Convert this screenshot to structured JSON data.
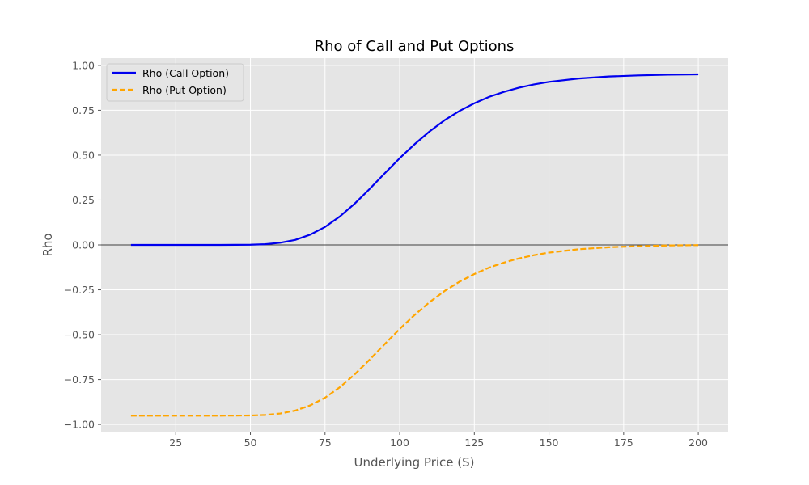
{
  "chart_data": {
    "type": "line",
    "title": "Rho of Call and Put Options",
    "xlabel": "Underlying Price (S)",
    "ylabel": "Rho",
    "xlim": [
      0,
      210
    ],
    "ylim": [
      -1.04,
      1.04
    ],
    "xticks": [
      25,
      50,
      75,
      100,
      125,
      150,
      175,
      200
    ],
    "yticks": [
      -1.0,
      -0.75,
      -0.5,
      -0.25,
      0.0,
      0.25,
      0.5,
      0.75,
      1.0
    ],
    "xtick_labels": [
      "25",
      "50",
      "75",
      "100",
      "125",
      "150",
      "175",
      "200"
    ],
    "ytick_labels": [
      "−1.00",
      "−0.75",
      "−0.50",
      "−0.25",
      "0.00",
      "0.25",
      "0.50",
      "0.75",
      "1.00"
    ],
    "grid": true,
    "legend": "top-left",
    "zero_line": true,
    "colors": {
      "call": "#0000ee",
      "put": "#ffa500",
      "background": "#e5e5e5",
      "grid": "#ffffff"
    },
    "x": [
      10,
      20,
      30,
      40,
      50,
      55,
      60,
      65,
      70,
      75,
      80,
      85,
      90,
      95,
      100,
      105,
      110,
      115,
      120,
      125,
      130,
      135,
      140,
      145,
      150,
      160,
      170,
      180,
      190,
      200
    ],
    "series": [
      {
        "name": "Rho (Call Option)",
        "style": "solid",
        "values": [
          0.0,
          0.0,
          0.0,
          0.0,
          0.001,
          0.004,
          0.012,
          0.028,
          0.057,
          0.1,
          0.159,
          0.231,
          0.313,
          0.399,
          0.483,
          0.561,
          0.632,
          0.694,
          0.746,
          0.789,
          0.825,
          0.853,
          0.876,
          0.894,
          0.908,
          0.927,
          0.938,
          0.944,
          0.948,
          0.95
        ]
      },
      {
        "name": "Rho (Put Option)",
        "style": "dashed",
        "values": [
          -0.951,
          -0.951,
          -0.951,
          -0.951,
          -0.95,
          -0.947,
          -0.939,
          -0.923,
          -0.894,
          -0.851,
          -0.792,
          -0.72,
          -0.638,
          -0.552,
          -0.468,
          -0.39,
          -0.319,
          -0.257,
          -0.205,
          -0.162,
          -0.126,
          -0.098,
          -0.075,
          -0.057,
          -0.043,
          -0.024,
          -0.013,
          -0.007,
          -0.003,
          -0.001
        ]
      }
    ]
  }
}
